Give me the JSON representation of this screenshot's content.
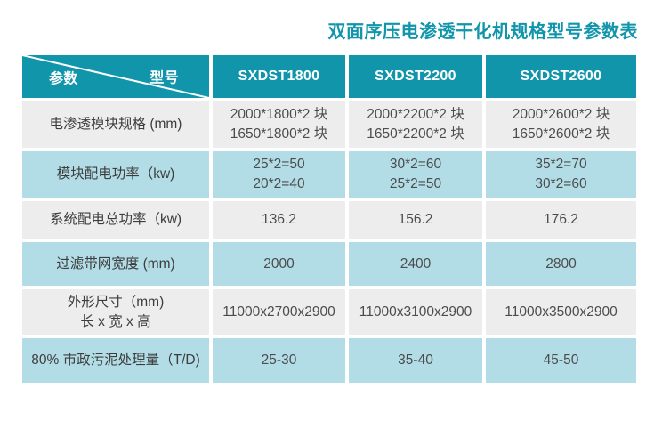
{
  "title": "双面序压电渗透干化机规格型号参数表",
  "colors": {
    "header_bg": "#1095ab",
    "row_gray": "#ededee",
    "row_blue": "#b2dde7",
    "title_text": "#1095ab",
    "header_text": "#ffffff"
  },
  "table": {
    "corner": {
      "param_label": "参数",
      "model_label": "型号"
    },
    "model_columns": [
      "SXDST1800",
      "SXDST2200",
      "SXDST2600"
    ],
    "rows": [
      {
        "label_lines": [
          "电渗透模块规格 (mm)"
        ],
        "cells": [
          [
            "2000*1800*2 块",
            "1650*1800*2 块"
          ],
          [
            "2000*2200*2 块",
            "1650*2200*2 块"
          ],
          [
            "2000*2600*2 块",
            "1650*2600*2 块"
          ]
        ]
      },
      {
        "label_lines": [
          "模块配电功率（kw)"
        ],
        "cells": [
          [
            "25*2=50",
            "20*2=40"
          ],
          [
            "30*2=60",
            "25*2=50"
          ],
          [
            "35*2=70",
            "30*2=60"
          ]
        ]
      },
      {
        "label_lines": [
          "系统配电总功率（kw)"
        ],
        "cells": [
          [
            "136.2"
          ],
          [
            "156.2"
          ],
          [
            "176.2"
          ]
        ]
      },
      {
        "label_lines": [
          "过滤带网宽度 (mm)"
        ],
        "cells": [
          [
            "2000"
          ],
          [
            "2400"
          ],
          [
            "2800"
          ]
        ]
      },
      {
        "label_lines": [
          "外形尺寸（mm)",
          "长 x 宽 x 高"
        ],
        "cells": [
          [
            "11000x2700x2900"
          ],
          [
            "11000x3100x2900"
          ],
          [
            "11000x3500x2900"
          ]
        ]
      },
      {
        "label_lines": [
          "80% 市政污泥处理量（T/D)"
        ],
        "cells": [
          [
            "25-30"
          ],
          [
            "35-40"
          ],
          [
            "45-50"
          ]
        ]
      }
    ]
  }
}
